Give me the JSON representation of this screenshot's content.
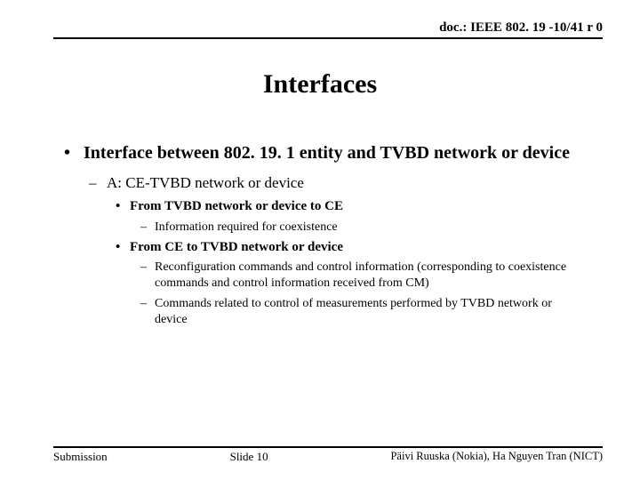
{
  "header": {
    "doc_id": "doc.: IEEE 802. 19 -10/41 r 0"
  },
  "title": "Interfaces",
  "content": {
    "l1": "Interface between 802. 19. 1 entity and TVBD network or device",
    "l2_a": "A: CE-TVBD network or device",
    "l3_a": "From TVBD network or device to CE",
    "l4_a1": "Information required for coexistence",
    "l3_b": "From CE to TVBD network or device",
    "l4_b1": "Reconfiguration commands and control information (corresponding to coexistence commands and control information received from CM)",
    "l4_b2": "Commands related to control of measurements performed by TVBD network or device"
  },
  "footer": {
    "left": "Submission",
    "center": "Slide 10",
    "right": "Päivi Ruuska (Nokia), Ha Nguyen Tran (NICT)"
  }
}
